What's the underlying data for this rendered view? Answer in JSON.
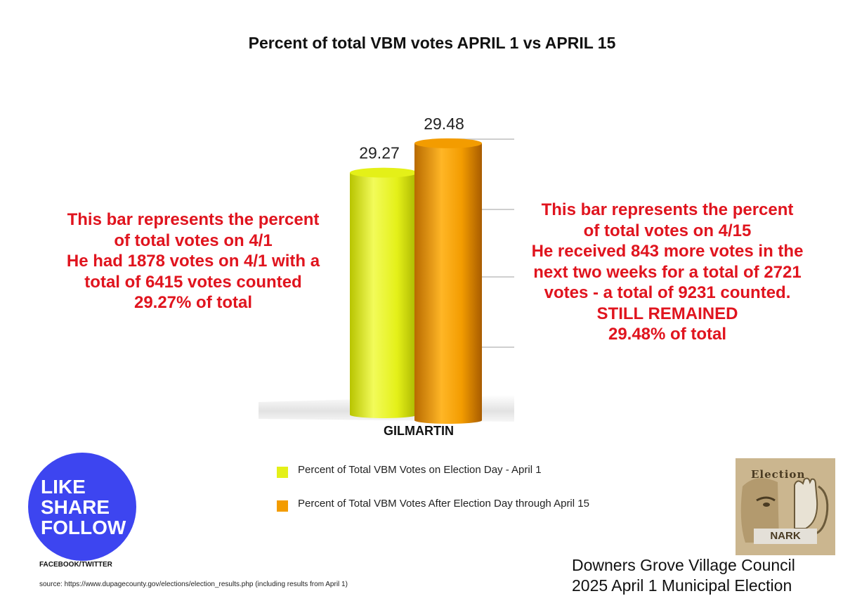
{
  "chart_data": {
    "type": "bar",
    "title": "Percent of total VBM votes APRIL 1 vs  APRIL 15",
    "categories": [
      "GILMARTIN"
    ],
    "series": [
      {
        "name": "Percent of Total VBM Votes on Election Day - April 1",
        "values": [
          29.27
        ],
        "value_label": "29.27",
        "color": "#e4f018"
      },
      {
        "name": "Percent of Total VBM Votes After Election Day through April 15",
        "values": [
          29.48
        ],
        "value_label": "29.48",
        "color": "#f39c00"
      }
    ],
    "ylim": [
      27.5,
      29.6
    ],
    "grid": true,
    "legend_position": "bottom"
  },
  "annotations": {
    "left": [
      "This bar represents the percent",
      "of total votes on 4/1",
      "He had 1878 votes on 4/1 with a",
      "total of 6415 votes counted",
      "29.27% of total"
    ],
    "right": [
      "This bar represents the percent",
      "of total votes on 4/15",
      "He received 843 more votes in the",
      "next two weeks for a total of 2721",
      "votes - a total of 9231 counted.",
      "STILL REMAINED",
      "29.48% of total"
    ],
    "color": "#e0141e"
  },
  "badge": {
    "lines": [
      "LIKE",
      "SHARE",
      "FOLLOW"
    ],
    "caption": "FACEBOOK/TWITTER",
    "color": "#3d45f0"
  },
  "source_note": "source: https://www.dupagecounty.gov/elections/election_results.php (including results from April 1)",
  "footer": {
    "line1": "Downers Grove Village Council",
    "line2": "2025 April 1 Municipal Election"
  },
  "logo": {
    "word_top": "Election",
    "word_bottom": "NARK"
  }
}
